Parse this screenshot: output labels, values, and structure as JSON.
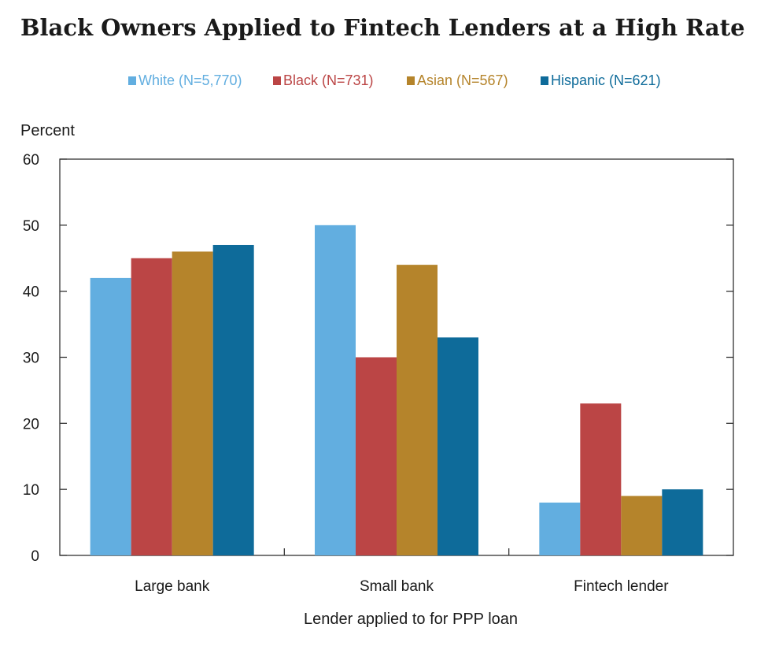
{
  "chart_data": {
    "type": "bar",
    "title": "Black Owners Applied to Fintech Lenders at a High Rate",
    "ylabel": "Percent",
    "xlabel": "Lender applied to for PPP loan",
    "categories": [
      "Large bank",
      "Small bank",
      "Fintech lender"
    ],
    "ylim": [
      0,
      60
    ],
    "yticks": [
      0,
      10,
      20,
      30,
      40,
      50,
      60
    ],
    "grid": false,
    "legend_position": "top",
    "series": [
      {
        "name": "White (N=5,770)",
        "color": "#62aee0",
        "values": [
          42,
          50,
          8
        ]
      },
      {
        "name": "Black (N=731)",
        "color": "#bb4545",
        "values": [
          45,
          30,
          23
        ]
      },
      {
        "name": "Asian (N=567)",
        "color": "#b5842b",
        "values": [
          46,
          44,
          9
        ]
      },
      {
        "name": "Hispanic (N=621)",
        "color": "#0e6b9a",
        "values": [
          47,
          33,
          10
        ]
      }
    ]
  }
}
